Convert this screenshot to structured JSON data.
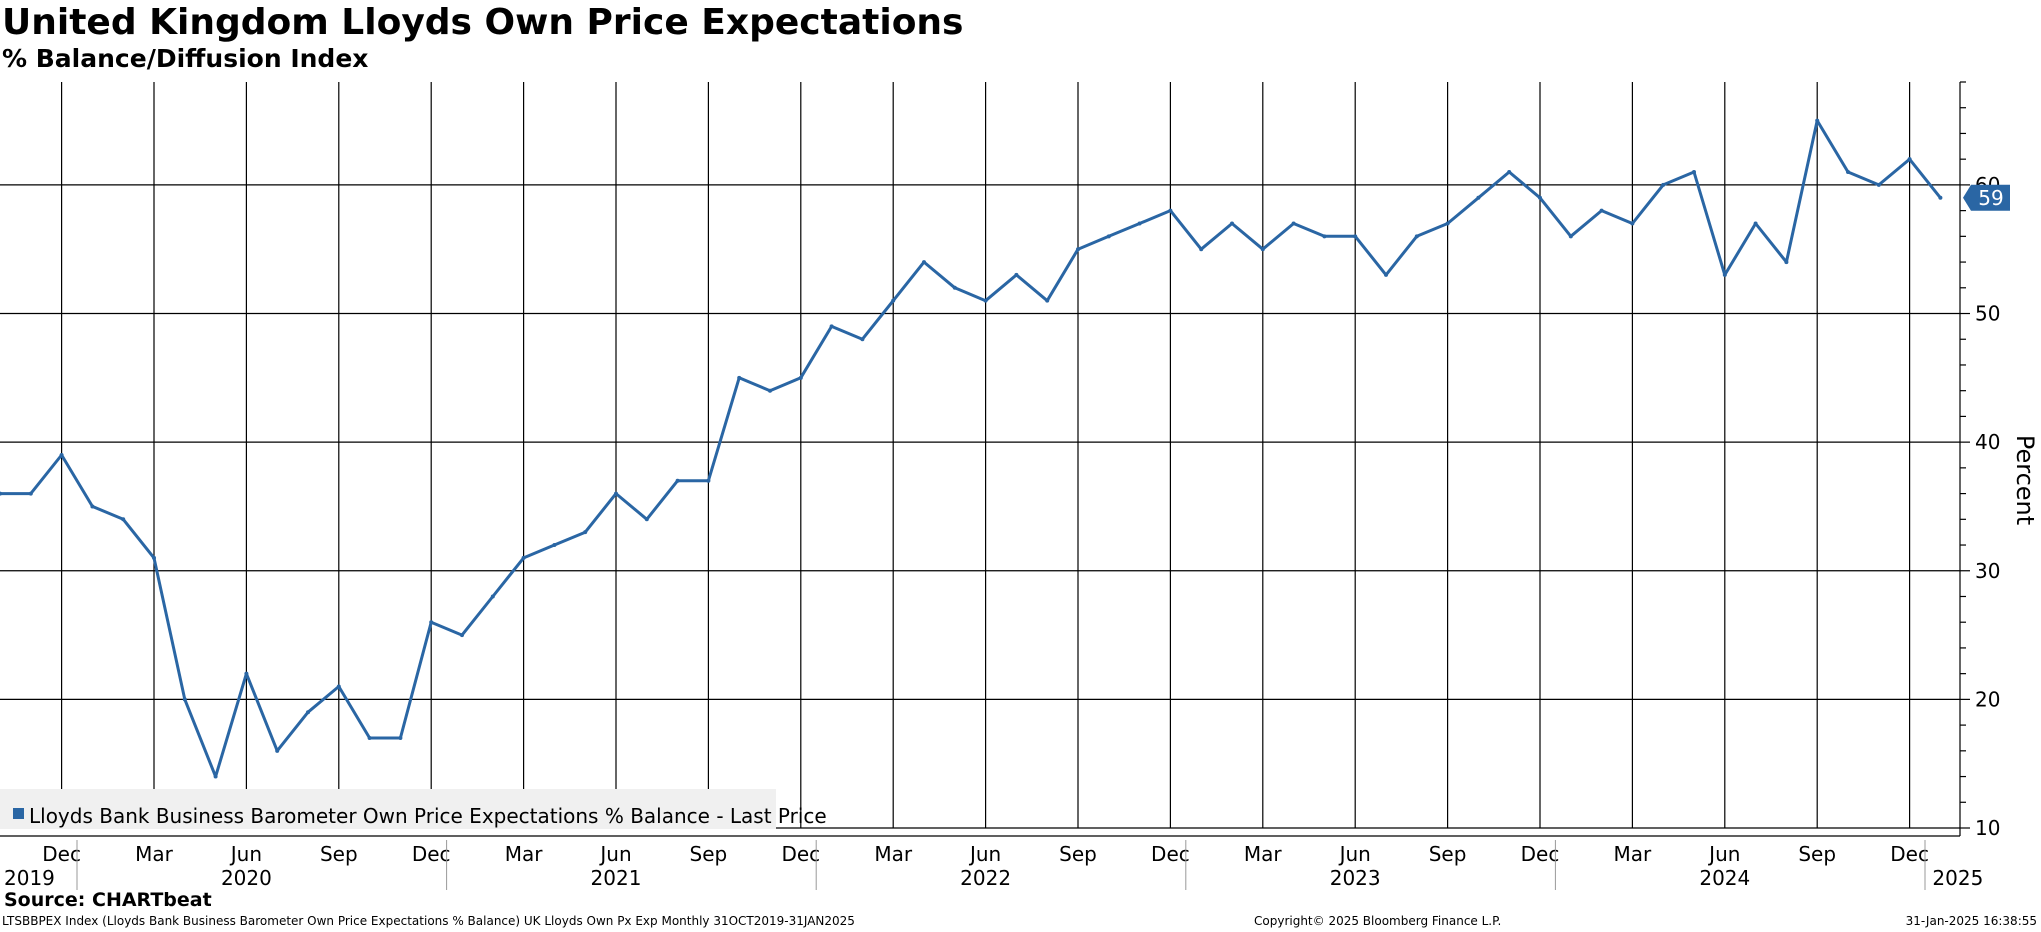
{
  "header": {
    "title": "United Kingdom Lloyds Own Price Expectations",
    "subtitle": "% Balance/Diffusion Index"
  },
  "footer": {
    "source": "Source: CHARTbeat",
    "ticker_line": "LTSBBPEX Index (Lloyds Bank Business Barometer Own Price Expectations % Balance) UK Lloyds Own Px Exp  Monthly 31OCT2019-31JAN2025",
    "copyright": "Copyright© 2025 Bloomberg Finance L.P.",
    "timestamp": "31-Jan-2025 16:38:55"
  },
  "colors": {
    "series": "#2a66a4",
    "grid": "#000000",
    "legend_bg": "#f0f0f0",
    "last_badge_bg": "#2a66a4",
    "last_badge_text": "#ffffff"
  },
  "chart_data": {
    "type": "line",
    "title": "United Kingdom Lloyds Own Price Expectations",
    "subtitle": "% Balance/Diffusion Index",
    "ylabel": "Percent",
    "ylim": [
      10,
      68
    ],
    "yticks": [
      10,
      20,
      30,
      40,
      50,
      60
    ],
    "y_axis_position": "right",
    "grid": true,
    "legend": {
      "placement": "bottom-left",
      "entries": [
        "Lloyds Bank Business Barometer Own Price Expectations % Balance - Last Price"
      ]
    },
    "last_value_label": "59",
    "x_month_ticks": [
      {
        "date": "2019-12",
        "label": "Dec"
      },
      {
        "date": "2020-03",
        "label": "Mar"
      },
      {
        "date": "2020-06",
        "label": "Jun"
      },
      {
        "date": "2020-09",
        "label": "Sep"
      },
      {
        "date": "2020-12",
        "label": "Dec"
      },
      {
        "date": "2021-03",
        "label": "Mar"
      },
      {
        "date": "2021-06",
        "label": "Jun"
      },
      {
        "date": "2021-09",
        "label": "Sep"
      },
      {
        "date": "2021-12",
        "label": "Dec"
      },
      {
        "date": "2022-03",
        "label": "Mar"
      },
      {
        "date": "2022-06",
        "label": "Jun"
      },
      {
        "date": "2022-09",
        "label": "Sep"
      },
      {
        "date": "2022-12",
        "label": "Dec"
      },
      {
        "date": "2023-03",
        "label": "Mar"
      },
      {
        "date": "2023-06",
        "label": "Jun"
      },
      {
        "date": "2023-09",
        "label": "Sep"
      },
      {
        "date": "2023-12",
        "label": "Dec"
      },
      {
        "date": "2024-03",
        "label": "Mar"
      },
      {
        "date": "2024-06",
        "label": "Jun"
      },
      {
        "date": "2024-09",
        "label": "Sep"
      },
      {
        "date": "2024-12",
        "label": "Dec"
      }
    ],
    "x_year_labels": [
      {
        "date": "2019-11",
        "label": "2019"
      },
      {
        "date": "2020-06",
        "label": "2020"
      },
      {
        "date": "2021-06",
        "label": "2021"
      },
      {
        "date": "2022-06",
        "label": "2022"
      },
      {
        "date": "2023-06",
        "label": "2023"
      },
      {
        "date": "2024-06",
        "label": "2024"
      },
      {
        "date": "2025-01",
        "label": "2025"
      }
    ],
    "series": [
      {
        "name": "Lloyds Bank Business Barometer Own Price Expectations % Balance - Last Price",
        "x": [
          "2019-10",
          "2019-11",
          "2019-12",
          "2020-01",
          "2020-02",
          "2020-03",
          "2020-04",
          "2020-05",
          "2020-06",
          "2020-07",
          "2020-08",
          "2020-09",
          "2020-10",
          "2020-11",
          "2020-12",
          "2021-01",
          "2021-02",
          "2021-03",
          "2021-04",
          "2021-05",
          "2021-06",
          "2021-07",
          "2021-08",
          "2021-09",
          "2021-10",
          "2021-11",
          "2021-12",
          "2022-01",
          "2022-02",
          "2022-03",
          "2022-04",
          "2022-05",
          "2022-06",
          "2022-07",
          "2022-08",
          "2022-09",
          "2022-10",
          "2022-11",
          "2022-12",
          "2023-01",
          "2023-02",
          "2023-03",
          "2023-04",
          "2023-05",
          "2023-06",
          "2023-07",
          "2023-08",
          "2023-09",
          "2023-10",
          "2023-11",
          "2023-12",
          "2024-01",
          "2024-02",
          "2024-03",
          "2024-04",
          "2024-05",
          "2024-06",
          "2024-07",
          "2024-08",
          "2024-09",
          "2024-10",
          "2024-11",
          "2024-12",
          "2025-01"
        ],
        "values": [
          36,
          36,
          39,
          35,
          34,
          31,
          20,
          14,
          22,
          16,
          19,
          21,
          17,
          17,
          26,
          25,
          28,
          31,
          32,
          33,
          36,
          34,
          37,
          37,
          45,
          44,
          45,
          49,
          48,
          51,
          54,
          52,
          51,
          53,
          51,
          55,
          56,
          57,
          58,
          55,
          57,
          55,
          57,
          56,
          56,
          53,
          56,
          57,
          59,
          61,
          59,
          56,
          58,
          57,
          60,
          61,
          53,
          57,
          54,
          65,
          61,
          60,
          62,
          59
        ]
      }
    ]
  }
}
